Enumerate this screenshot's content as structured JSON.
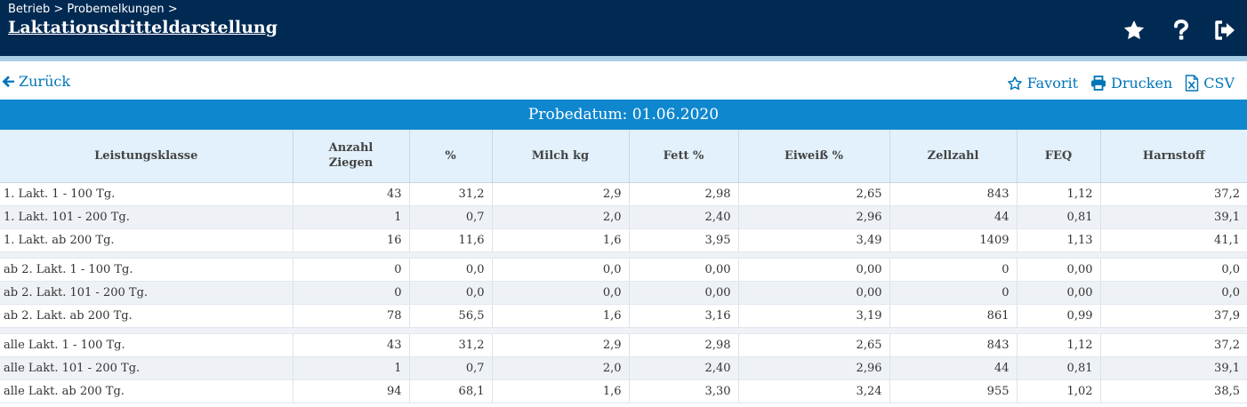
{
  "header": {
    "breadcrumb": "Betrieb > Probemelkungen >",
    "title": "Laktationsdritteldarstellung"
  },
  "toolbar": {
    "back_label": "Zurück",
    "favorit_label": "Favorit",
    "print_label": "Drucken",
    "csv_label": "CSV"
  },
  "table": {
    "caption": "Probedatum: 01.06.2020",
    "columns": {
      "leistungsklasse": "Leistungsklasse",
      "anzahl_line1": "Anzahl",
      "anzahl_line2": "Ziegen",
      "prozent": "%",
      "milch": "Milch kg",
      "fett": "Fett %",
      "eiweiss": "Eiweiß %",
      "zellzahl": "Zellzahl",
      "feq": "FEQ",
      "harnstoff": "Harnstoff"
    },
    "groups": [
      [
        {
          "klasse": "1. Lakt. 1 - 100 Tg.",
          "anzahl": "43",
          "prozent": "31,2",
          "milch": "2,9",
          "fett": "2,98",
          "eiweiss": "2,65",
          "zellzahl": "843",
          "feq": "1,12",
          "harnstoff": "37,2"
        },
        {
          "klasse": "1. Lakt. 101 - 200 Tg.",
          "anzahl": "1",
          "prozent": "0,7",
          "milch": "2,0",
          "fett": "2,40",
          "eiweiss": "2,96",
          "zellzahl": "44",
          "feq": "0,81",
          "harnstoff": "39,1"
        },
        {
          "klasse": "1. Lakt. ab 200 Tg.",
          "anzahl": "16",
          "prozent": "11,6",
          "milch": "1,6",
          "fett": "3,95",
          "eiweiss": "3,49",
          "zellzahl": "1409",
          "feq": "1,13",
          "harnstoff": "41,1"
        }
      ],
      [
        {
          "klasse": "ab 2. Lakt. 1 - 100 Tg.",
          "anzahl": "0",
          "prozent": "0,0",
          "milch": "0,0",
          "fett": "0,00",
          "eiweiss": "0,00",
          "zellzahl": "0",
          "feq": "0,00",
          "harnstoff": "0,0"
        },
        {
          "klasse": "ab 2. Lakt. 101 - 200 Tg.",
          "anzahl": "0",
          "prozent": "0,0",
          "milch": "0,0",
          "fett": "0,00",
          "eiweiss": "0,00",
          "zellzahl": "0",
          "feq": "0,00",
          "harnstoff": "0,0"
        },
        {
          "klasse": "ab 2. Lakt. ab 200 Tg.",
          "anzahl": "78",
          "prozent": "56,5",
          "milch": "1,6",
          "fett": "3,16",
          "eiweiss": "3,19",
          "zellzahl": "861",
          "feq": "0,99",
          "harnstoff": "37,9"
        }
      ],
      [
        {
          "klasse": "alle Lakt. 1 - 100 Tg.",
          "anzahl": "43",
          "prozent": "31,2",
          "milch": "2,9",
          "fett": "2,98",
          "eiweiss": "2,65",
          "zellzahl": "843",
          "feq": "1,12",
          "harnstoff": "37,2"
        },
        {
          "klasse": "alle Lakt. 101 - 200 Tg.",
          "anzahl": "1",
          "prozent": "0,7",
          "milch": "2,0",
          "fett": "2,40",
          "eiweiss": "2,96",
          "zellzahl": "44",
          "feq": "0,81",
          "harnstoff": "39,1"
        },
        {
          "klasse": "alle Lakt. ab 200 Tg.",
          "anzahl": "94",
          "prozent": "68,1",
          "milch": "1,6",
          "fett": "3,30",
          "eiweiss": "3,24",
          "zellzahl": "955",
          "feq": "1,02",
          "harnstoff": "38,5"
        }
      ]
    ]
  },
  "icons": {
    "favorite": "star-icon",
    "help": "question-icon",
    "logout": "logout-icon",
    "back": "arrow-left-icon",
    "favorit_outline": "star-outline-icon",
    "print": "print-icon",
    "csv": "file-excel-icon"
  },
  "colors": {
    "header_bg": "#002a52",
    "accent": "#0f87cf",
    "link": "#0075b8",
    "th_bg": "#e2f1fb"
  }
}
